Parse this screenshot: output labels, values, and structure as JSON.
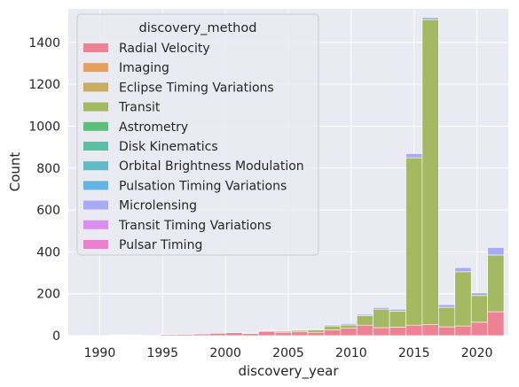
{
  "chart_data": {
    "type": "bar",
    "stacked": true,
    "xlabel": "discovery_year",
    "ylabel": "Count",
    "xlim": [
      1987.5,
      2022.5
    ],
    "ylim": [
      0,
      1560
    ],
    "xticks": [
      1990,
      1995,
      2000,
      2005,
      2010,
      2015,
      2020
    ],
    "yticks": [
      0,
      200,
      400,
      600,
      800,
      1000,
      1200,
      1400
    ],
    "grid": true,
    "background": "#eaeaf2",
    "legend_title": "discovery_method",
    "legend_position": "top-left",
    "bins": [
      1989,
      1990.3,
      1991.6,
      1992.9,
      1994.2,
      1995.5,
      1996.8,
      1998.1,
      1999.4,
      2000.7,
      2002.0,
      2003.3,
      2004.6,
      2005.9,
      2007.2,
      2008.5,
      2009.8,
      2011.1,
      2012.4,
      2013.7,
      2015.0,
      2016.3,
      2017.6,
      2018.9,
      2020.2,
      2021.5
    ],
    "series": [
      {
        "name": "Radial Velocity",
        "color": "#ee8295",
        "values": [
          1,
          0,
          2,
          2,
          0,
          5,
          6,
          8,
          11,
          14,
          10,
          21,
          16,
          18,
          16,
          28,
          35,
          50,
          38,
          40,
          50,
          52,
          42,
          46,
          64,
          114
        ]
      },
      {
        "name": "Imaging",
        "color": "#e5a05e",
        "values": [
          0,
          0,
          0,
          0,
          0,
          0,
          0,
          0,
          0,
          0,
          0,
          0,
          0,
          0,
          0,
          0,
          0,
          0,
          0,
          0,
          0,
          0,
          0,
          0,
          0,
          0
        ]
      },
      {
        "name": "Eclipse Timing Variations",
        "color": "#c7ac62",
        "values": [
          0,
          0,
          0,
          0,
          0,
          0,
          0,
          0,
          0,
          0,
          0,
          0,
          0,
          0,
          0,
          0,
          0,
          0,
          0,
          0,
          0,
          0,
          0,
          0,
          0,
          0
        ]
      },
      {
        "name": "Transit",
        "color": "#a5b862",
        "values": [
          0,
          0,
          0,
          0,
          0,
          0,
          0,
          0,
          0,
          0,
          2,
          3,
          5,
          8,
          12,
          18,
          16,
          45,
          88,
          77,
          799,
          1457,
          93,
          259,
          127,
          271
        ]
      },
      {
        "name": "Astrometry",
        "color": "#5cc07a",
        "values": [
          0,
          0,
          0,
          0,
          0,
          0,
          0,
          0,
          0,
          0,
          0,
          0,
          0,
          0,
          0,
          0,
          0,
          0,
          0,
          0,
          0,
          0,
          0,
          0,
          0,
          0
        ]
      },
      {
        "name": "Disk Kinematics",
        "color": "#5cbfa5",
        "values": [
          0,
          0,
          0,
          0,
          0,
          0,
          0,
          0,
          0,
          0,
          0,
          0,
          0,
          0,
          0,
          0,
          0,
          0,
          0,
          0,
          0,
          0,
          0,
          0,
          0,
          0
        ]
      },
      {
        "name": "Orbital Brightness Modulation",
        "color": "#5fbcc6",
        "values": [
          0,
          0,
          0,
          0,
          0,
          0,
          0,
          0,
          0,
          0,
          0,
          0,
          0,
          0,
          0,
          0,
          0,
          0,
          0,
          0,
          0,
          0,
          0,
          0,
          0,
          0
        ]
      },
      {
        "name": "Pulsation Timing Variations",
        "color": "#62b4e3",
        "values": [
          0,
          0,
          0,
          0,
          0,
          0,
          0,
          0,
          0,
          0,
          0,
          0,
          0,
          0,
          0,
          0,
          0,
          0,
          0,
          0,
          0,
          0,
          0,
          0,
          0,
          0
        ]
      },
      {
        "name": "Microlensing",
        "color": "#a5acf5",
        "values": [
          0,
          0,
          0,
          0,
          0,
          0,
          0,
          0,
          0,
          0,
          0,
          1,
          0,
          2,
          3,
          5,
          7,
          7,
          8,
          9,
          20,
          10,
          13,
          20,
          13,
          36
        ]
      },
      {
        "name": "Transit Timing Variations",
        "color": "#dc8df0",
        "values": [
          0,
          0,
          0,
          0,
          0,
          0,
          0,
          0,
          0,
          0,
          0,
          0,
          0,
          0,
          0,
          0,
          0,
          0,
          0,
          0,
          0,
          0,
          0,
          0,
          0,
          0
        ]
      },
      {
        "name": "Pulsar Timing",
        "color": "#ef7dcf",
        "values": [
          0,
          0,
          2,
          1,
          0,
          0,
          0,
          0,
          0,
          0,
          0,
          0,
          0,
          0,
          0,
          0,
          0,
          0,
          0,
          0,
          0,
          0,
          0,
          0,
          0,
          0
        ]
      }
    ]
  }
}
